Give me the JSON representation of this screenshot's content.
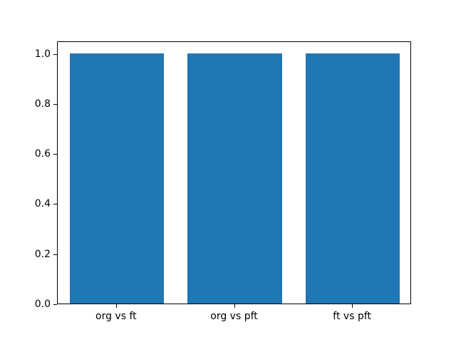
{
  "chart_data": {
    "type": "bar",
    "categories": [
      "org vs ft",
      "org vs pft",
      "ft vs pft"
    ],
    "values": [
      1.0,
      1.0,
      1.0
    ],
    "title": "",
    "xlabel": "",
    "ylabel": "",
    "ylim": [
      0,
      1.05
    ],
    "yticks": [
      0.0,
      0.2,
      0.4,
      0.6,
      0.8,
      1.0
    ],
    "ytick_labels": [
      "0.0",
      "0.2",
      "0.4",
      "0.6",
      "0.8",
      "1.0"
    ],
    "bar_width_fraction": 0.8,
    "grid": false,
    "legend": null,
    "colors": {
      "bar": "#1f77b4",
      "axes_frame": "#000000",
      "background": "#ffffff",
      "tick_text": "#000000"
    }
  }
}
